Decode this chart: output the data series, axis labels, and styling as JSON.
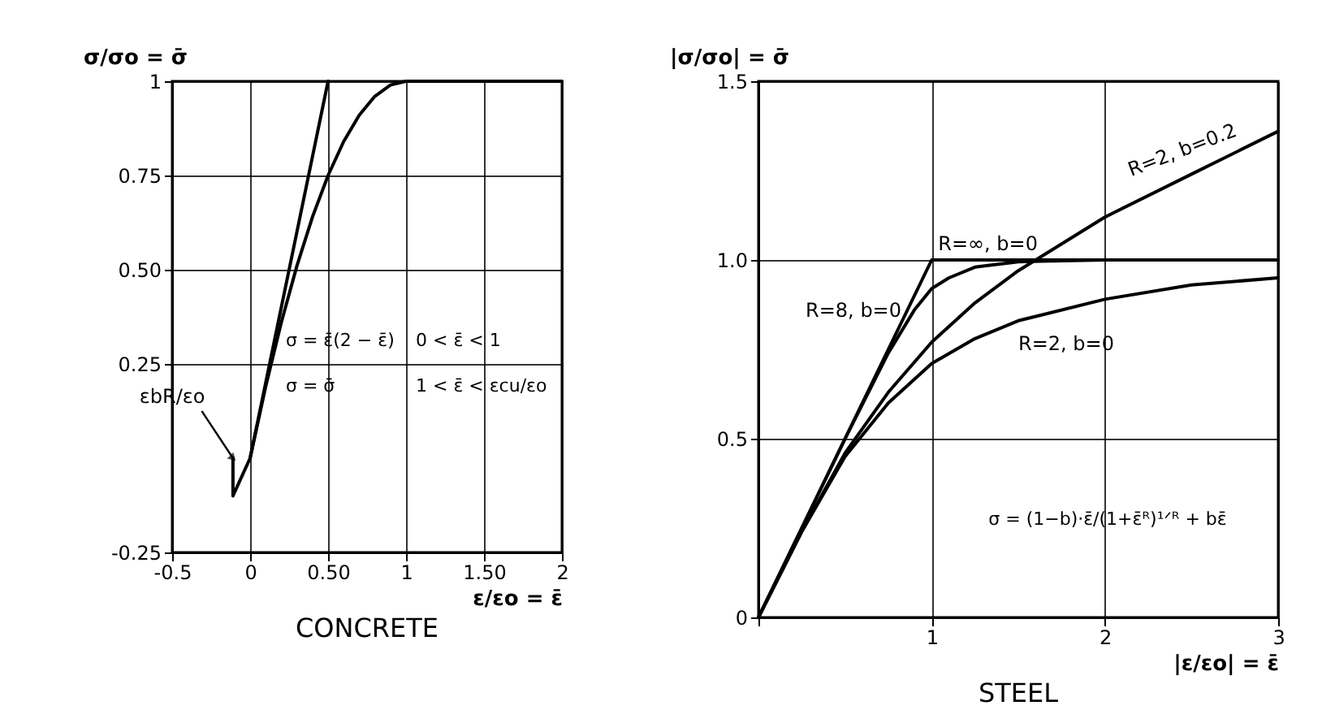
{
  "chart_data": [
    {
      "type": "line",
      "title": "CONCRETE",
      "xlabel": "ε/εo = ε̄",
      "ylabel": "σ/σo = σ̄",
      "xlim": [
        -0.5,
        2
      ],
      "ylim": [
        -0.25,
        1
      ],
      "xticks": [
        -0.5,
        0,
        {
          "value": 0.5,
          "label": "0.50"
        },
        1,
        {
          "value": 1.5,
          "label": "1.50"
        },
        2
      ],
      "yticks": [
        -0.25,
        0.25,
        {
          "value": 0.5,
          "label": "0.50"
        },
        0.75,
        1
      ],
      "grid": true,
      "legend": false,
      "line_style": "solid",
      "series": [
        {
          "color": "#000000",
          "x": [
            -0.11,
            -0.11,
            0,
            0.1,
            0.2,
            0.3,
            0.4,
            0.5,
            0.6,
            0.7,
            0.8,
            0.9,
            1,
            2
          ],
          "values": [
            0,
            -0.1,
            0,
            0.19,
            0.36,
            0.51,
            0.64,
            0.75,
            0.84,
            0.91,
            0.96,
            0.99,
            1,
            1
          ]
        },
        {
          "color": "#000000",
          "x": [
            0,
            0.5
          ],
          "values": [
            0,
            1
          ]
        }
      ],
      "annotations": [
        "σ = ε̄(2 − ε̄)",
        "0 < ε̄ < 1",
        "σ = σ̄",
        "1 < ε̄ < εcu/εo",
        {
          "text": "εbR/εo",
          "x": -0.11,
          "y": 0
        }
      ]
    },
    {
      "type": "line",
      "title": "STEEL",
      "xlabel": "|ε/εo| = ε̄",
      "ylabel": "|σ/σo| = σ̄",
      "xlim": [
        0,
        3
      ],
      "ylim": [
        0,
        1.5
      ],
      "xticks": [
        {
          "value": 0,
          "label": null
        },
        1,
        2,
        3
      ],
      "yticks": [
        0,
        0.5,
        {
          "value": 1,
          "label": "1.0"
        },
        1.5
      ],
      "grid": true,
      "legend": false,
      "line_style": "solid",
      "series": [
        {
          "name": "R=∞, b=0",
          "color": "#000000",
          "x": [
            0,
            1,
            3
          ],
          "values": [
            0,
            1,
            1
          ]
        },
        {
          "name": "R=8, b=0",
          "color": "#000000",
          "x": [
            0,
            0.25,
            0.5,
            0.75,
            0.9,
            1,
            1.1,
            1.25,
            1.5,
            2,
            3
          ],
          "values": [
            0,
            0.25,
            0.5,
            0.74,
            0.86,
            0.92,
            0.95,
            0.98,
            0.995,
            1,
            1
          ]
        },
        {
          "name": "R=2, b=0",
          "color": "#000000",
          "x": [
            0,
            0.25,
            0.5,
            0.75,
            1,
            1.25,
            1.5,
            2,
            2.5,
            3
          ],
          "values": [
            0,
            0.24,
            0.45,
            0.6,
            0.71,
            0.78,
            0.83,
            0.89,
            0.93,
            0.95
          ]
        },
        {
          "name": "R=2, b=0.2",
          "color": "#000000",
          "x": [
            0,
            0.25,
            0.5,
            0.75,
            1,
            1.25,
            1.5,
            2,
            2.5,
            3
          ],
          "values": [
            0,
            0.24,
            0.46,
            0.63,
            0.77,
            0.88,
            0.97,
            1.12,
            1.24,
            1.36
          ]
        }
      ],
      "annotations": [
        "σ = (1−b)·ε̄/(1+ε̄ᴿ)¹ᐟᴿ + bε̄"
      ]
    }
  ]
}
